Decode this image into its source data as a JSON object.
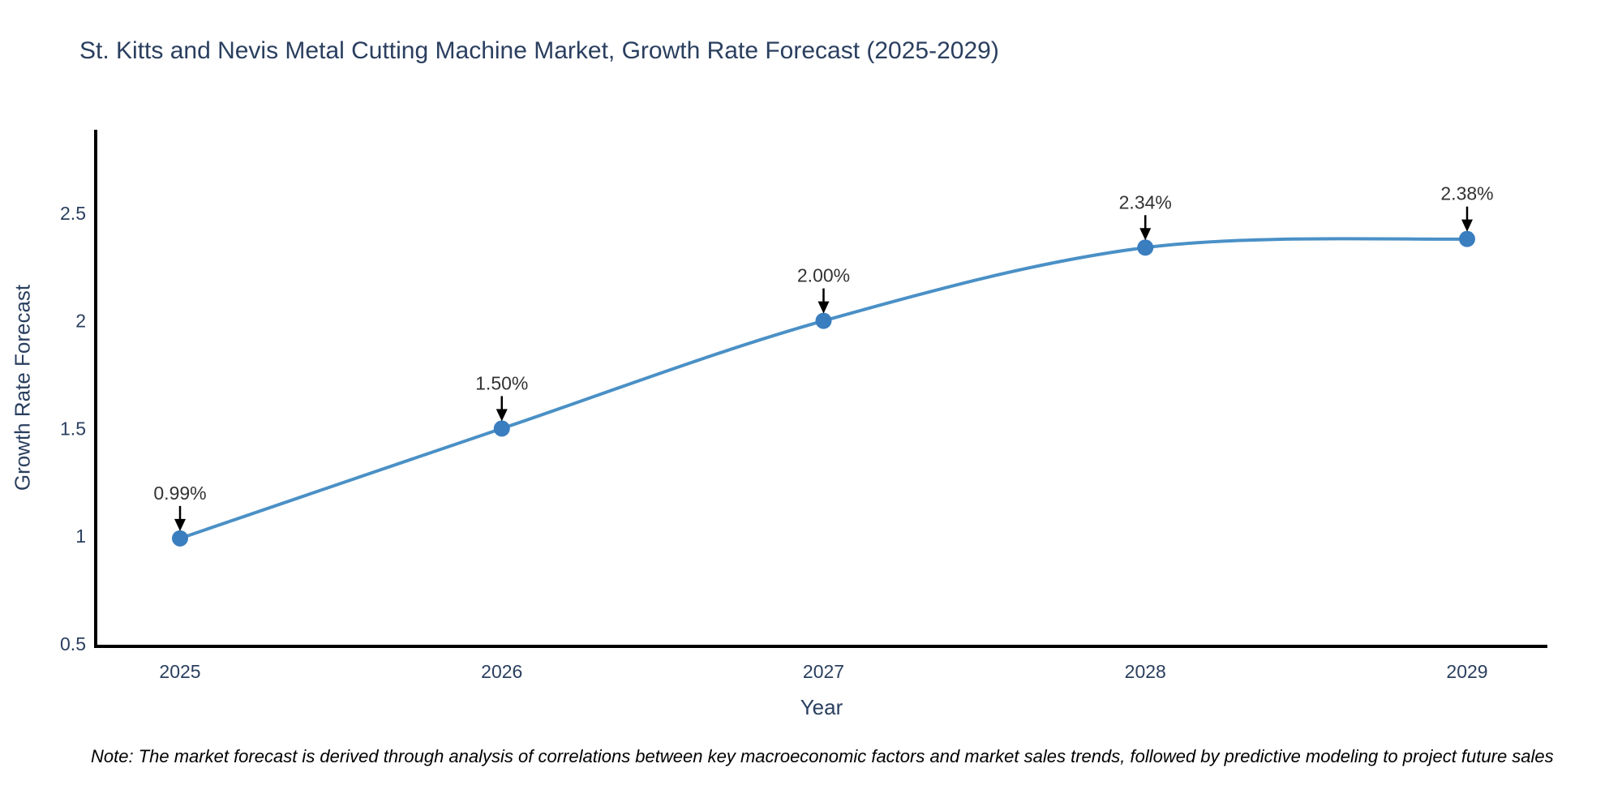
{
  "chart": {
    "title": "St. Kitts and Nevis Metal Cutting Machine Market, Growth Rate Forecast (2025-2029)",
    "xlabel": "Year",
    "ylabel": "Growth Rate Forecast"
  },
  "note": "Note: The market forecast is derived through analysis of correlations between key macroeconomic factors and market sales trends, followed by predictive modeling to project future sales",
  "chart_data": {
    "type": "line",
    "title": "St. Kitts and Nevis Metal Cutting Machine Market, Growth Rate Forecast (2025-2029)",
    "xlabel": "Year",
    "ylabel": "Growth Rate Forecast",
    "x": [
      2025,
      2026,
      2027,
      2028,
      2029
    ],
    "x_tick_labels": [
      "2025",
      "2026",
      "2027",
      "2028",
      "2029"
    ],
    "series": [
      {
        "name": "Growth Rate Forecast",
        "values": [
          0.99,
          1.5,
          2.0,
          2.34,
          2.38
        ]
      }
    ],
    "point_labels": [
      "0.99%",
      "1.50%",
      "2.00%",
      "2.34%",
      "2.38%"
    ],
    "y_ticks": [
      "0.5",
      "1",
      "1.5",
      "2",
      "2.5"
    ],
    "y_tick_values": [
      0.5,
      1,
      1.5,
      2,
      2.5
    ],
    "ylim": [
      0.5,
      2.9
    ],
    "grid": false,
    "legend": "none",
    "line_shape": "spline",
    "marker": "circle",
    "annotation_arrows": true
  },
  "colors": {
    "line": "#4a90c6",
    "marker": "#3a7ebf",
    "axis": "#000000",
    "arrow": "#000000",
    "title_text": "#2a3f5f",
    "tick_text": "#2a3f5f",
    "axis_label_text": "#2a3f5f",
    "annotation_text": "#333333",
    "note_text": "#000000",
    "background": "#ffffff"
  }
}
